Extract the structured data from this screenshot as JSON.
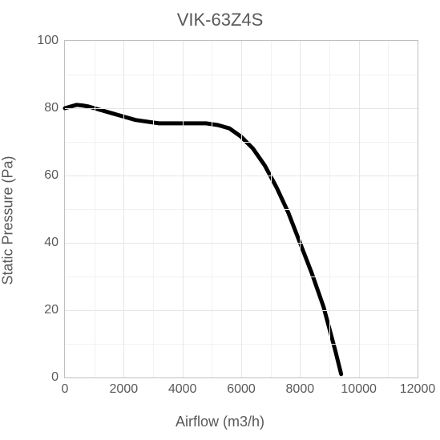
{
  "chart": {
    "type": "line",
    "title": "VIK-63Z4S",
    "title_fontsize": 22,
    "title_color": "#595959",
    "xlabel": "Airflow (m3/h)",
    "ylabel": "Static Pressure (Pa)",
    "label_fontsize": 18,
    "label_color": "#595959",
    "tick_fontsize": 16,
    "tick_color": "#595959",
    "background_color": "#ffffff",
    "grid_color": "#e6e6e6",
    "minor_grid_color": "#f2f2f2",
    "border_color": "#bfbfbf",
    "xlim": [
      0,
      12000
    ],
    "ylim": [
      0,
      100
    ],
    "xtick_step": 2000,
    "ytick_step": 20,
    "xminor_step": 1000,
    "yminor_step": 10,
    "xticks": [
      0,
      2000,
      4000,
      6000,
      8000,
      10000,
      12000
    ],
    "yticks": [
      0,
      20,
      40,
      60,
      80,
      100
    ],
    "line_color": "#000000",
    "line_width": 5,
    "series": {
      "x": [
        0,
        200,
        400,
        600,
        800,
        1000,
        1200,
        1600,
        2000,
        2400,
        2800,
        3200,
        3600,
        4000,
        4400,
        4800,
        5200,
        5600,
        6000,
        6400,
        6800,
        7200,
        7600,
        8000,
        8400,
        8800,
        9200,
        9400
      ],
      "y": [
        80,
        80.5,
        81,
        80.8,
        80.5,
        80,
        79.5,
        78.5,
        77.5,
        76.5,
        76,
        75.5,
        75.5,
        75.5,
        75.5,
        75.5,
        75,
        74,
        71.5,
        68,
        63,
        56.5,
        49,
        40,
        31,
        21,
        8,
        1
      ]
    }
  }
}
